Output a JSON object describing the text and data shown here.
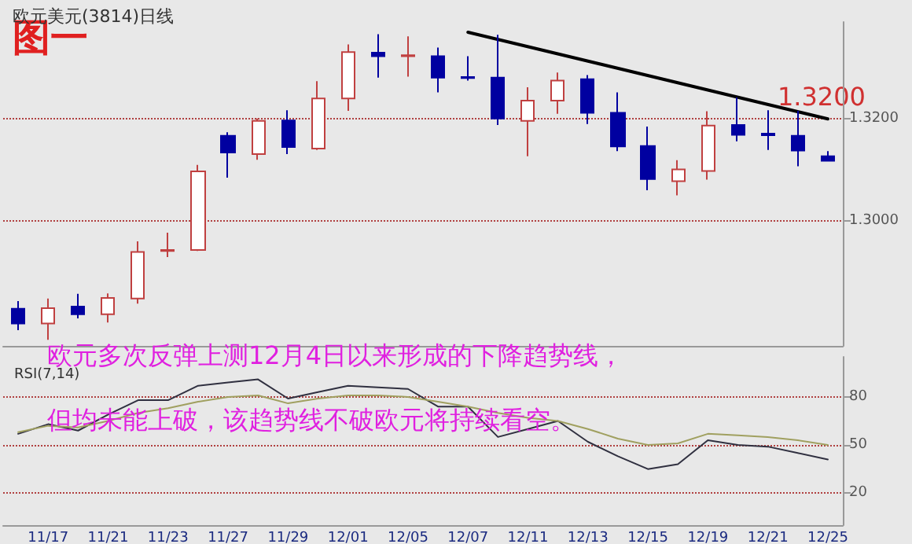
{
  "chart_data": [
    {
      "type": "candlestick",
      "title": "欧元美元(3814)日线",
      "categories": [
        null,
        "11/17",
        null,
        "11/21",
        null,
        "11/23",
        null,
        "11/27",
        null,
        "11/29",
        null,
        "12/01",
        null,
        "12/05",
        null,
        "12/07",
        null,
        "12/11",
        null,
        "12/13",
        null,
        "12/15",
        null,
        "12/19",
        null,
        "12/21",
        null,
        "12/25"
      ],
      "ohlc": [
        [
          1.2828,
          1.2843,
          1.2786,
          1.2799
        ],
        [
          1.2799,
          1.2848,
          1.2767,
          1.2829
        ],
        [
          1.2832,
          1.2857,
          1.2809,
          1.2817
        ],
        [
          1.2817,
          1.2858,
          1.2801,
          1.2849
        ],
        [
          1.2848,
          1.296,
          1.2838,
          1.2939
        ],
        [
          1.2941,
          1.2977,
          1.2929,
          1.2943
        ],
        [
          1.2943,
          1.311,
          1.2941,
          1.3097
        ],
        [
          1.3167,
          1.3174,
          1.3085,
          1.3134
        ],
        [
          1.3131,
          1.3201,
          1.312,
          1.3196
        ],
        [
          1.3197,
          1.3217,
          1.3131,
          1.3145
        ],
        [
          1.3142,
          1.3274,
          1.3139,
          1.324
        ],
        [
          1.324,
          1.3346,
          1.3216,
          1.3331
        ],
        [
          1.333,
          1.3366,
          1.3281,
          1.3323
        ],
        [
          1.3323,
          1.3362,
          1.3283,
          1.3325
        ],
        [
          1.3323,
          1.334,
          1.3252,
          1.3281
        ],
        [
          1.3282,
          1.3323,
          1.3275,
          1.328
        ],
        [
          1.3281,
          1.3365,
          1.3188,
          1.3201
        ],
        [
          1.3196,
          1.3262,
          1.3127,
          1.3236
        ],
        [
          1.3236,
          1.3291,
          1.321,
          1.3275
        ],
        [
          1.3278,
          1.3286,
          1.319,
          1.3212
        ],
        [
          1.3212,
          1.3252,
          1.3137,
          1.3146
        ],
        [
          1.3147,
          1.3185,
          1.306,
          1.3082
        ],
        [
          1.3078,
          1.3119,
          1.305,
          1.3101
        ],
        [
          1.3098,
          1.3215,
          1.3081,
          1.3187
        ],
        [
          1.3188,
          1.3242,
          1.3156,
          1.3169
        ],
        [
          1.3171,
          1.3217,
          1.3139,
          1.3168
        ],
        [
          1.3167,
          1.3216,
          1.3107,
          1.3138
        ],
        [
          1.3127,
          1.3137,
          1.3118,
          1.3118
        ]
      ],
      "series": [
        {
          "type": "line",
          "color": "#000000",
          "x": [
            "12/07",
            "12/25"
          ],
          "values": [
            1.337,
            1.32
          ]
        }
      ],
      "ylim": [
        1.2755,
        1.339
      ],
      "yticks": [
        {
          "value": 1.3,
          "label": "1.3000"
        },
        {
          "value": 1.32,
          "label": "1.3200"
        }
      ],
      "grid": "y",
      "tick_labels": "y",
      "annotations": [
        "图一",
        {
          "text": "1.3200",
          "x": "12/25",
          "y": 1.32
        }
      ]
    },
    {
      "type": "line",
      "title": "RSI(7,14)",
      "categories": [
        null,
        "11/17",
        null,
        "11/21",
        null,
        "11/23",
        null,
        "11/27",
        null,
        "11/29",
        null,
        "12/01",
        null,
        "12/05",
        null,
        "12/07",
        null,
        "12/11",
        null,
        "12/13",
        null,
        "12/15",
        null,
        "12/19",
        null,
        "12/21",
        null,
        "12/25"
      ],
      "series": [
        {
          "color": "#303040",
          "values": [
            57,
            63,
            59,
            69,
            78,
            78,
            87,
            89,
            91,
            79,
            83,
            87,
            86,
            85,
            74,
            74,
            55,
            60,
            65,
            52,
            43,
            35,
            38,
            53,
            50,
            49,
            45,
            41
          ]
        },
        {
          "color": "#a0a060",
          "values": [
            58,
            62,
            61,
            65,
            70,
            73,
            77,
            80,
            81,
            76,
            79,
            81,
            81,
            80,
            77,
            74,
            70,
            67,
            65,
            60,
            54,
            50,
            51,
            57,
            56,
            55,
            53,
            50
          ]
        }
      ],
      "ylim": [
        0,
        105
      ],
      "yticks": [
        20,
        50,
        80
      ],
      "grid": "y",
      "marker": "none",
      "annotations": [
        "欧元多次反弹上测12月4日以来形成的下降趋势线，",
        "但均未能上破，该趋势线不破欧元将持续看空。"
      ]
    }
  ]
}
